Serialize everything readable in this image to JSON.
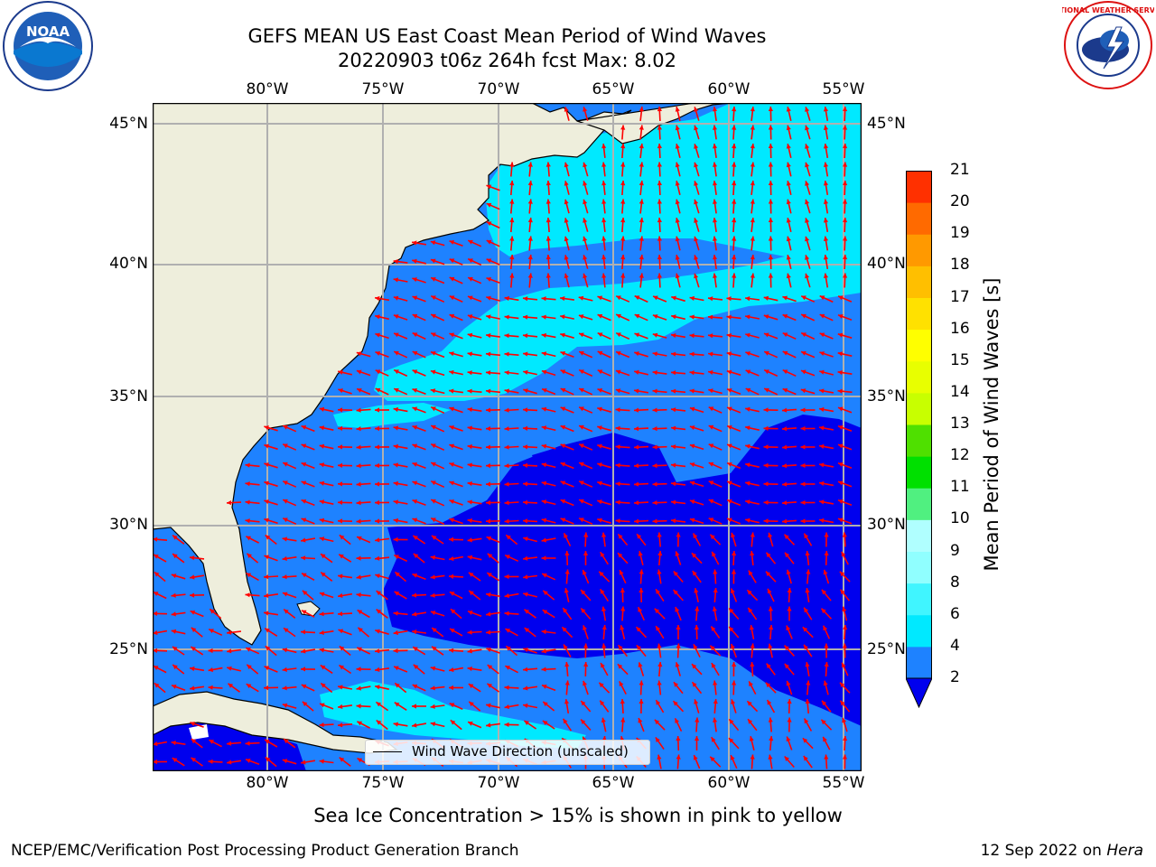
{
  "header": {
    "title_line1": "GEFS MEAN US East Coast Mean Period of Wind Waves",
    "title_line2": "20220903 t06z 264h fcst   Max: 8.02"
  },
  "logos": {
    "left": {
      "icon": "noaa-logo-icon",
      "text": "NOAA"
    },
    "right": {
      "icon": "nws-logo-icon",
      "text": "NATIONAL WEATHER SERVICE"
    }
  },
  "map": {
    "lon_labels": [
      "80°W",
      "75°W",
      "70°W",
      "65°W",
      "60°W",
      "55°W"
    ],
    "lat_labels": [
      "45°N",
      "40°N",
      "35°N",
      "30°N",
      "25°N"
    ],
    "legend_label": "Wind Wave Direction (unscaled)",
    "colors": {
      "land": "#eeeedc",
      "level_0": "#0000ee",
      "level_2": "#1e82ff",
      "level_4": "#00e9ff",
      "arrow": "#ff0000",
      "grid": "#b0b0b0"
    }
  },
  "colorbar": {
    "title": "Mean Period of Wind Waves [s]",
    "ticks": [
      "2",
      "4",
      "6",
      "8",
      "9",
      "10",
      "11",
      "12",
      "13",
      "14",
      "15",
      "16",
      "17",
      "18",
      "19",
      "20",
      "21"
    ],
    "colors": [
      "#1e82ff",
      "#00e9ff",
      "#40f5ff",
      "#90ffff",
      "#b0ffff",
      "#50f080",
      "#00e000",
      "#4fe000",
      "#c8ff00",
      "#e8ff00",
      "#ffff00",
      "#ffe100",
      "#ffbf00",
      "#ff9900",
      "#ff6a00",
      "#ff3000",
      "#ff0000"
    ],
    "extend_color": "#0000ee"
  },
  "footer": {
    "sea_ice_note": "Sea Ice Concentration > 15% is shown in pink to yellow",
    "credit_left": "NCEP/EMC/Verification Post Processing Product Generation Branch",
    "credit_right_prefix": "12 Sep 2022 on ",
    "credit_right_host": "Hera"
  }
}
